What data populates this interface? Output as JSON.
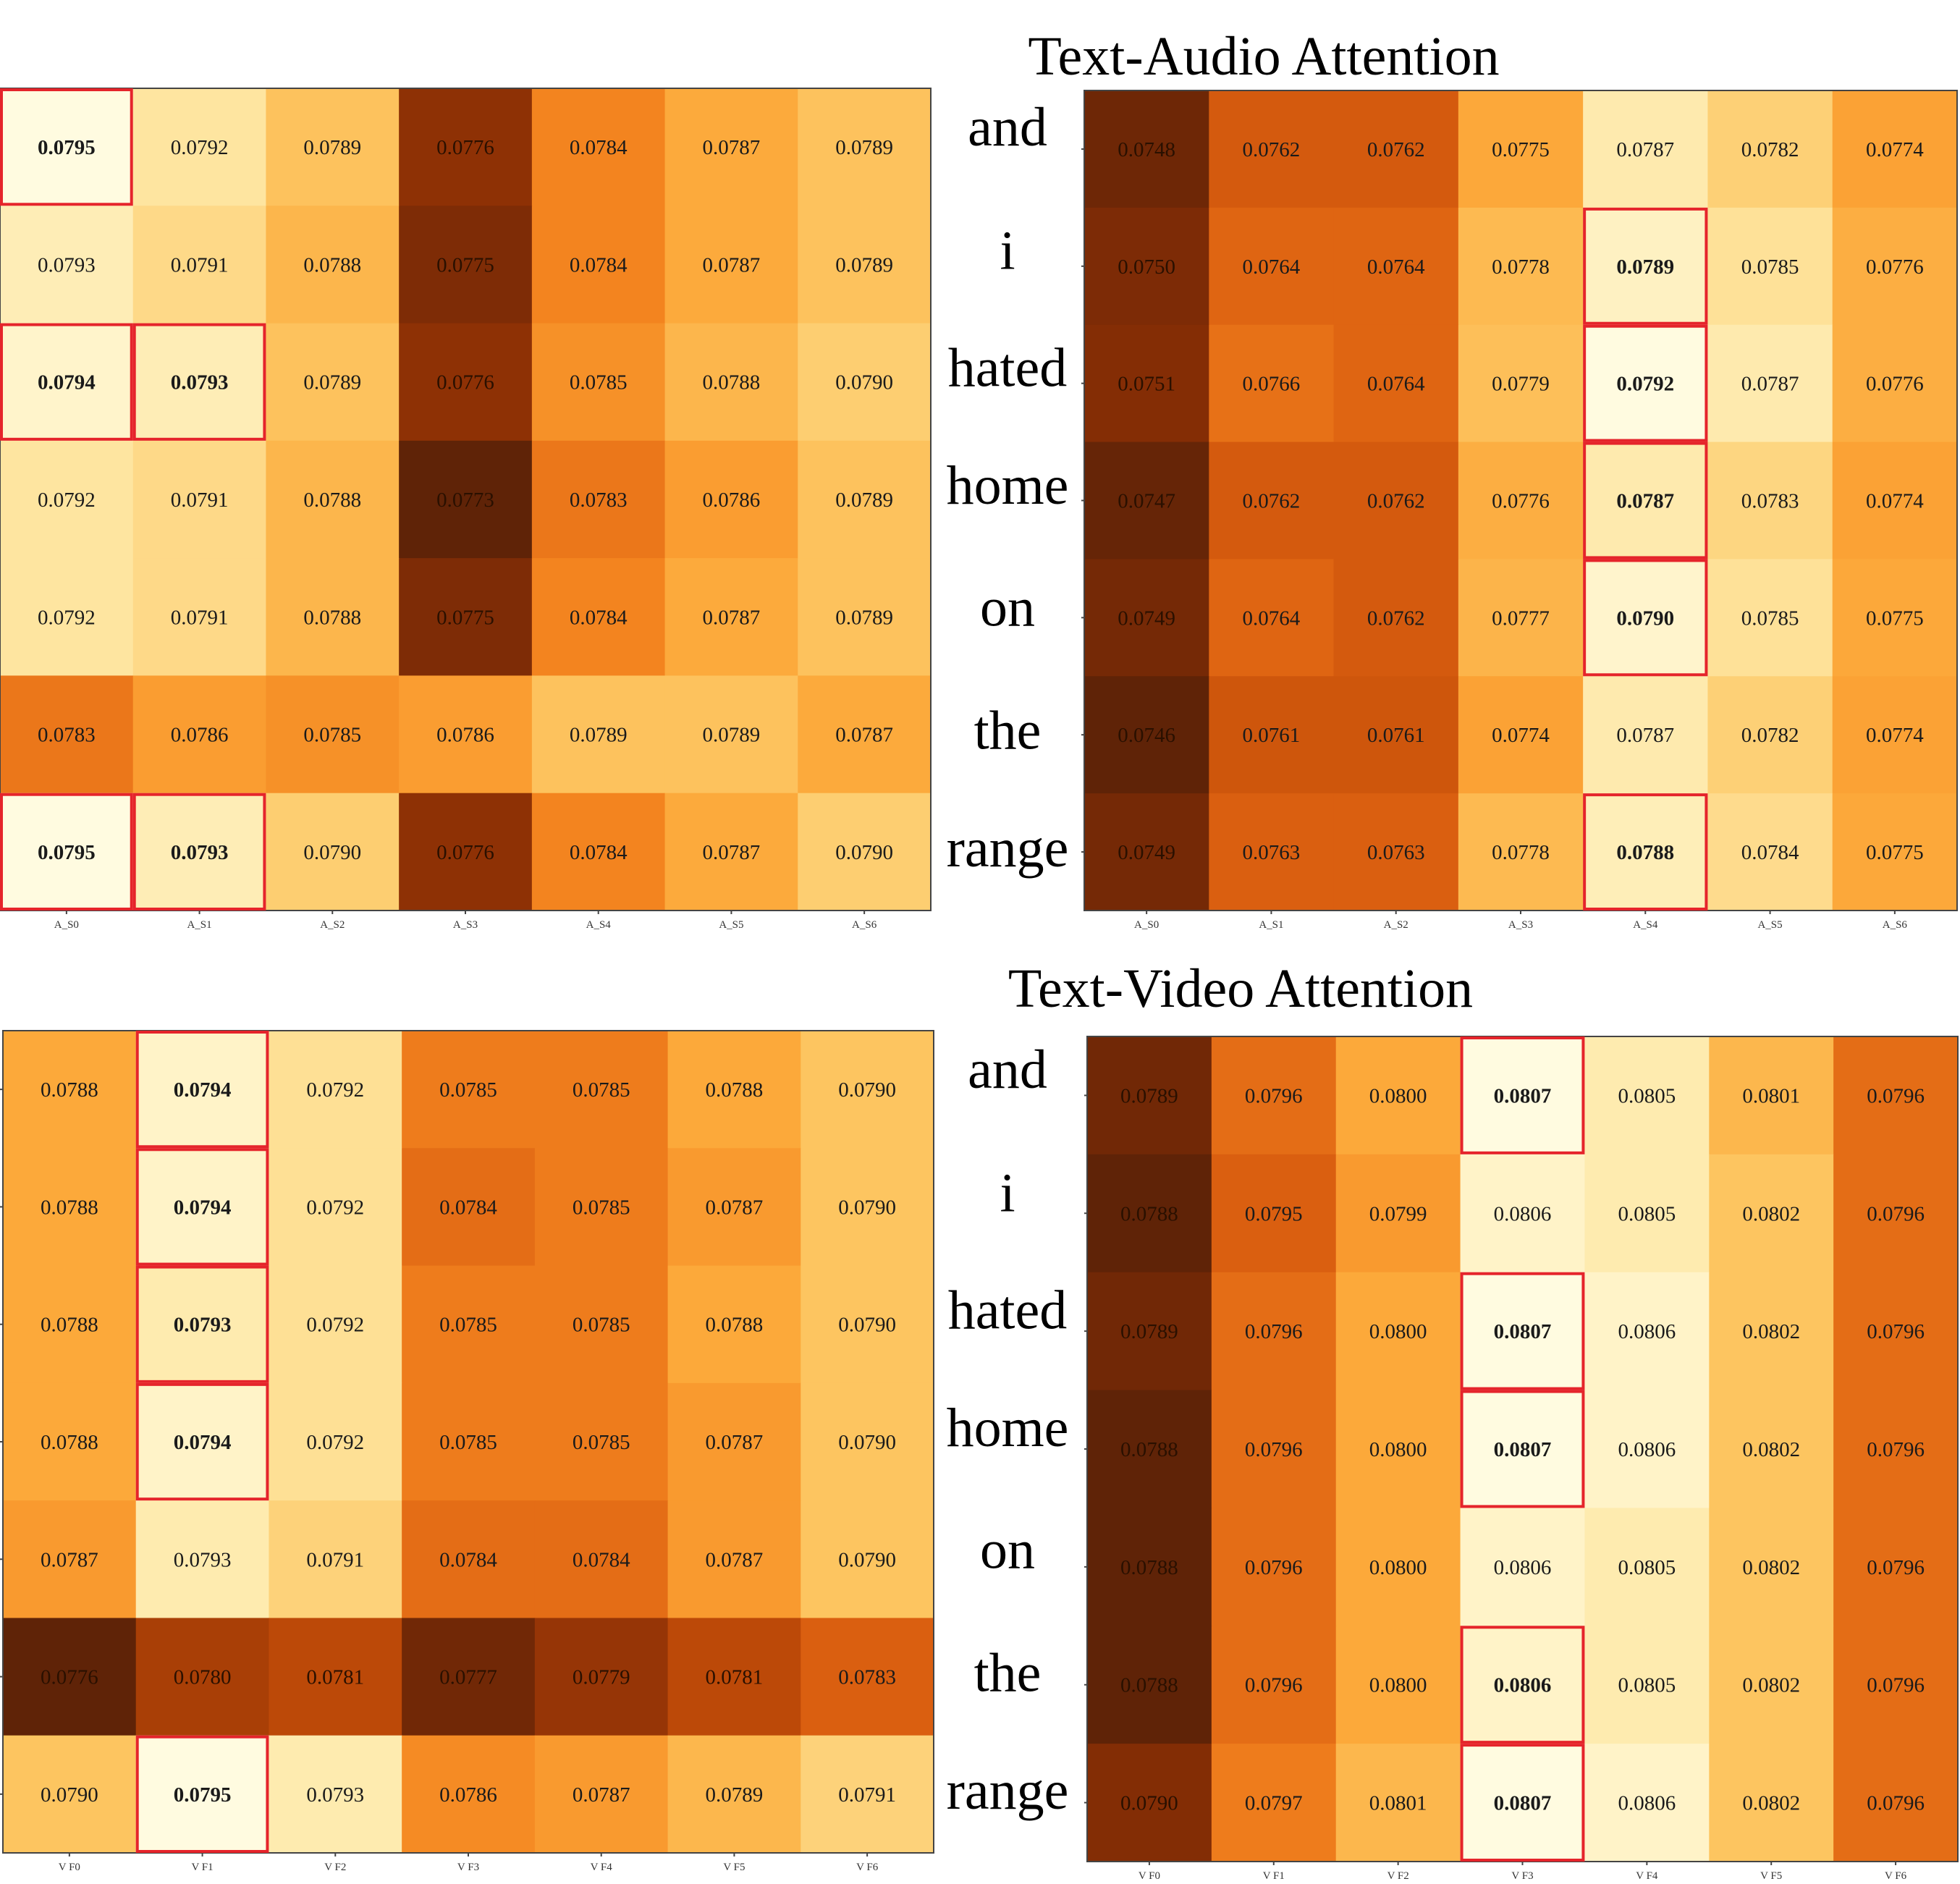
{
  "titles": {
    "audio": "Text-Audio Attention",
    "video": "Text-Video Attention"
  },
  "words": [
    "and",
    "i",
    "hated",
    "home",
    "on",
    "the",
    "range"
  ],
  "colors": {
    "highlight_box": "#e5242b",
    "colormap": [
      "#fffbe0",
      "#fee8a6",
      "#fdc865",
      "#fca738",
      "#f3841f",
      "#dc6010",
      "#b84607",
      "#8a2f05",
      "#5f2307"
    ]
  },
  "chart_data": [
    {
      "type": "heatmap",
      "name": "audio-left",
      "x_categories": [
        "A_S0",
        "A_S1",
        "A_S2",
        "A_S3",
        "A_S4",
        "A_S5",
        "A_S6"
      ],
      "y_categories": [
        "and",
        "i",
        "hated",
        "home",
        "on",
        "the",
        "range"
      ],
      "color_range": [
        0.0773,
        0.0795
      ],
      "values": [
        [
          0.0795,
          0.0792,
          0.0789,
          0.0776,
          0.0784,
          0.0787,
          0.0789
        ],
        [
          0.0793,
          0.0791,
          0.0788,
          0.0775,
          0.0784,
          0.0787,
          0.0789
        ],
        [
          0.0794,
          0.0793,
          0.0789,
          0.0776,
          0.0785,
          0.0788,
          0.079
        ],
        [
          0.0792,
          0.0791,
          0.0788,
          0.0773,
          0.0783,
          0.0786,
          0.0789
        ],
        [
          0.0792,
          0.0791,
          0.0788,
          0.0775,
          0.0784,
          0.0787,
          0.0789
        ],
        [
          0.0783,
          0.0786,
          0.0785,
          0.0786,
          0.0789,
          0.0789,
          0.0787
        ],
        [
          0.0795,
          0.0793,
          0.079,
          0.0776,
          0.0784,
          0.0787,
          0.079
        ]
      ],
      "highlighted": [
        [
          0,
          0
        ],
        [
          2,
          0
        ],
        [
          2,
          1
        ],
        [
          6,
          0
        ],
        [
          6,
          1
        ]
      ]
    },
    {
      "type": "heatmap",
      "name": "audio-right",
      "x_categories": [
        "A_S0",
        "A_S1",
        "A_S2",
        "A_S3",
        "A_S4",
        "A_S5",
        "A_S6"
      ],
      "y_categories": [
        "and",
        "i",
        "hated",
        "home",
        "on",
        "the",
        "range"
      ],
      "color_range": [
        0.0746,
        0.0792
      ],
      "values": [
        [
          0.0748,
          0.0762,
          0.0762,
          0.0775,
          0.0787,
          0.0782,
          0.0774
        ],
        [
          0.075,
          0.0764,
          0.0764,
          0.0778,
          0.0789,
          0.0785,
          0.0776
        ],
        [
          0.0751,
          0.0766,
          0.0764,
          0.0779,
          0.0792,
          0.0787,
          0.0776
        ],
        [
          0.0747,
          0.0762,
          0.0762,
          0.0776,
          0.0787,
          0.0783,
          0.0774
        ],
        [
          0.0749,
          0.0764,
          0.0762,
          0.0777,
          0.079,
          0.0785,
          0.0775
        ],
        [
          0.0746,
          0.0761,
          0.0761,
          0.0774,
          0.0787,
          0.0782,
          0.0774
        ],
        [
          0.0749,
          0.0763,
          0.0763,
          0.0778,
          0.0788,
          0.0784,
          0.0775
        ]
      ],
      "highlighted": [
        [
          1,
          4
        ],
        [
          2,
          4
        ],
        [
          3,
          4
        ],
        [
          4,
          4
        ],
        [
          6,
          4
        ]
      ]
    },
    {
      "type": "heatmap",
      "name": "video-left",
      "x_categories": [
        "V F0",
        "V F1",
        "V F2",
        "V F3",
        "V F4",
        "V F5",
        "V F6"
      ],
      "y_categories": [
        "and",
        "i",
        "hated",
        "home",
        "on",
        "the",
        "range"
      ],
      "color_range": [
        0.0776,
        0.0795
      ],
      "values": [
        [
          0.0788,
          0.0794,
          0.0792,
          0.0785,
          0.0785,
          0.0788,
          0.079
        ],
        [
          0.0788,
          0.0794,
          0.0792,
          0.0784,
          0.0785,
          0.0787,
          0.079
        ],
        [
          0.0788,
          0.0793,
          0.0792,
          0.0785,
          0.0785,
          0.0788,
          0.079
        ],
        [
          0.0788,
          0.0794,
          0.0792,
          0.0785,
          0.0785,
          0.0787,
          0.079
        ],
        [
          0.0787,
          0.0793,
          0.0791,
          0.0784,
          0.0784,
          0.0787,
          0.079
        ],
        [
          0.0776,
          0.078,
          0.0781,
          0.0777,
          0.0779,
          0.0781,
          0.0783
        ],
        [
          0.079,
          0.0795,
          0.0793,
          0.0786,
          0.0787,
          0.0789,
          0.0791
        ]
      ],
      "highlighted": [
        [
          0,
          1
        ],
        [
          1,
          1
        ],
        [
          2,
          1
        ],
        [
          3,
          1
        ],
        [
          6,
          1
        ]
      ]
    },
    {
      "type": "heatmap",
      "name": "video-right",
      "x_categories": [
        "V F0",
        "V F1",
        "V F2",
        "V F3",
        "V F4",
        "V F5",
        "V F6"
      ],
      "y_categories": [
        "and",
        "i",
        "hated",
        "home",
        "on",
        "the",
        "range"
      ],
      "color_range": [
        0.0788,
        0.0807
      ],
      "values": [
        [
          0.0789,
          0.0796,
          0.08,
          0.0807,
          0.0805,
          0.0801,
          0.0796
        ],
        [
          0.0788,
          0.0795,
          0.0799,
          0.0806,
          0.0805,
          0.0802,
          0.0796
        ],
        [
          0.0789,
          0.0796,
          0.08,
          0.0807,
          0.0806,
          0.0802,
          0.0796
        ],
        [
          0.0788,
          0.0796,
          0.08,
          0.0807,
          0.0806,
          0.0802,
          0.0796
        ],
        [
          0.0788,
          0.0796,
          0.08,
          0.0806,
          0.0805,
          0.0802,
          0.0796
        ],
        [
          0.0788,
          0.0796,
          0.08,
          0.0806,
          0.0805,
          0.0802,
          0.0796
        ],
        [
          0.079,
          0.0797,
          0.0801,
          0.0807,
          0.0806,
          0.0802,
          0.0796
        ]
      ],
      "highlighted": [
        [
          0,
          3
        ],
        [
          2,
          3
        ],
        [
          3,
          3
        ],
        [
          5,
          3
        ],
        [
          6,
          3
        ]
      ]
    }
  ]
}
